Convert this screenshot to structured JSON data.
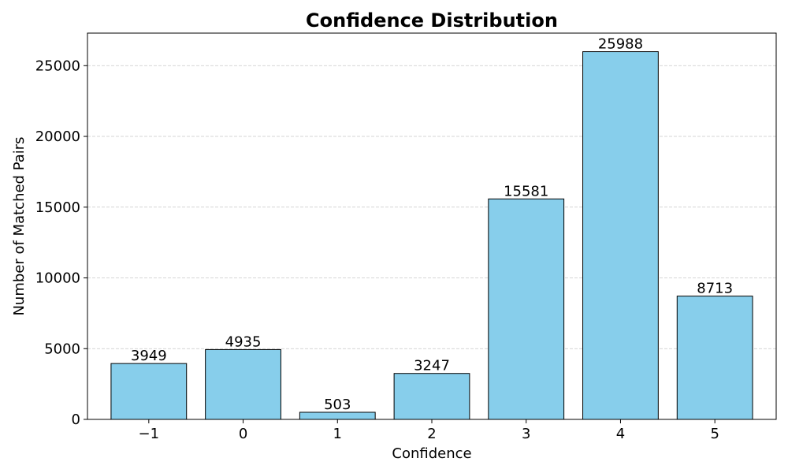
{
  "chart_data": {
    "type": "bar",
    "title": "Confidence Distribution",
    "xlabel": "Confidence",
    "ylabel": "Number of Matched Pairs",
    "categories": [
      "−1",
      "0",
      "1",
      "2",
      "3",
      "4",
      "5"
    ],
    "values": [
      3949,
      4935,
      503,
      3247,
      15581,
      25988,
      8713
    ],
    "data_labels": [
      "3949",
      "4935",
      "503",
      "3247",
      "15581",
      "25988",
      "8713"
    ],
    "ylim": [
      0,
      27300
    ],
    "yticks": [
      0,
      5000,
      10000,
      15000,
      20000,
      25000
    ],
    "ytick_labels": [
      "0",
      "5000",
      "10000",
      "15000",
      "20000",
      "25000"
    ],
    "grid": "y-dashed",
    "bar_color": "#87CEEB",
    "edge_color": "#000000",
    "grid_color": "#c8c8c8"
  }
}
